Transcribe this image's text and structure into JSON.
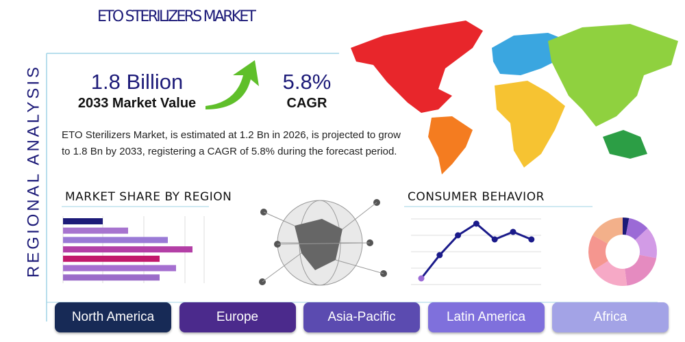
{
  "header": {
    "title": "ETO STERILIZERS MARKET",
    "side_title": "REGIONAL ANALYSIS"
  },
  "stats": [
    {
      "value": "1.8 Billion",
      "label": "2033 Market Value"
    },
    {
      "value": "5.8%",
      "label": "CAGR"
    }
  ],
  "description": "ETO Sterilizers Market, is estimated at 1.2 Bn in 2026, is projected to grow to 1.8 Bn by 2033, registering a CAGR of 5.8% during the forecast period.",
  "market_share": {
    "title": "MARKET SHARE BY REGION",
    "values": [
      58,
      95,
      153,
      189,
      141,
      165,
      141
    ],
    "colors": [
      "#1c1a78",
      "#a774cf",
      "#9a7ad6",
      "#b33fa6",
      "#c2186b",
      "#a56fd0",
      "#9b6cc9"
    ]
  },
  "consumer_behavior": {
    "title": "CONSUMER BEHAVIOR",
    "values": [
      8,
      42,
      71,
      88,
      65,
      76,
      65
    ],
    "color": "#1a1a8a"
  },
  "donut": {
    "values": [
      3,
      10,
      15,
      20,
      18,
      17,
      17
    ],
    "colors": [
      "#1c1a78",
      "#9b6ad6",
      "#d29be6",
      "#e58bc0",
      "#f6a9c6",
      "#f5968f",
      "#f3b08a"
    ]
  },
  "regions": [
    {
      "label": "North America",
      "color": "#172a56"
    },
    {
      "label": "Europe",
      "color": "#4b2a8c"
    },
    {
      "label": "Asia-Pacific",
      "color": "#5b4bb0"
    },
    {
      "label": "Latin America",
      "color": "#7f70dc"
    },
    {
      "label": "Africa",
      "color": "#a3a3e6"
    }
  ]
}
